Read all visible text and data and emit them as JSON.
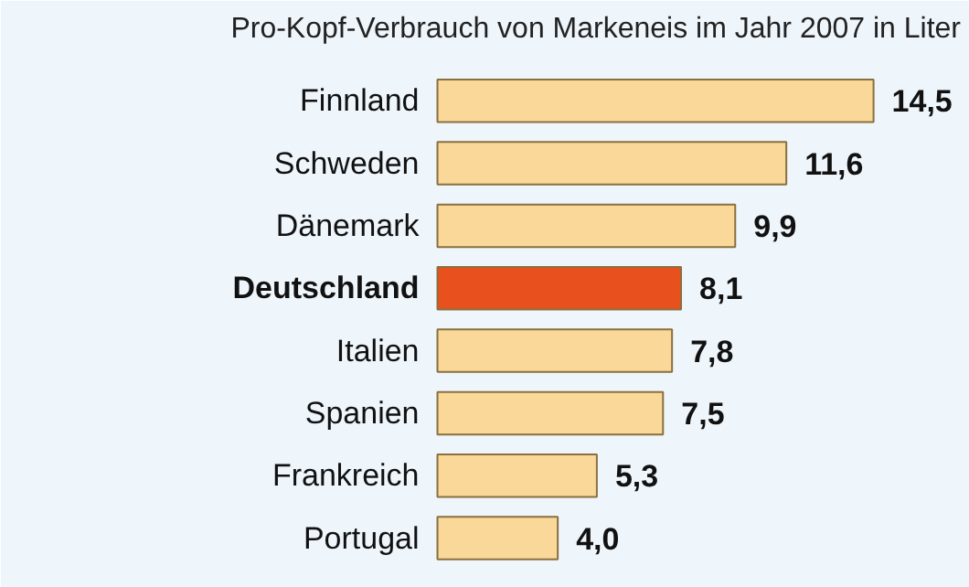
{
  "chart_data": {
    "type": "bar",
    "orientation": "horizontal",
    "title": "Pro-Kopf-Verbrauch von Markeneis im Jahr 2007 in Liter",
    "categories": [
      "Finnland",
      "Schweden",
      "Dänemark",
      "Deutschland",
      "Italien",
      "Spanien",
      "Frankreich",
      "Portugal"
    ],
    "values": [
      14.5,
      11.6,
      9.9,
      8.1,
      7.8,
      7.5,
      5.3,
      4.0
    ],
    "value_labels": [
      "14,5",
      "11,6",
      "9,9",
      "8,1",
      "7,8",
      "7,5",
      "5,3",
      "4,0"
    ],
    "colors": [
      "#f9d899",
      "#f9d899",
      "#f9d899",
      "#e8501e",
      "#f9d899",
      "#f9d899",
      "#f9d899",
      "#f9d899"
    ],
    "grid": false
  }
}
